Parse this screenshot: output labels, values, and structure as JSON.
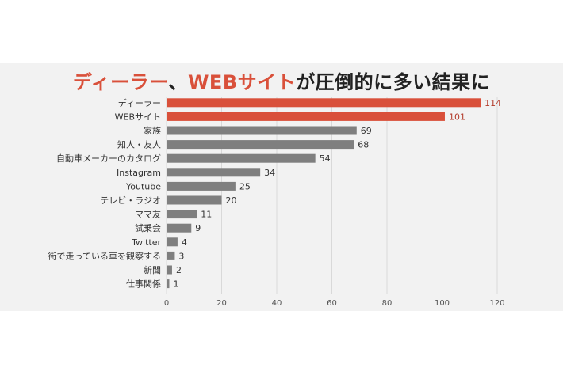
{
  "title": {
    "part1": "ディーラー",
    "part2": "、",
    "part3": "WEBサイト",
    "part4": "が圧倒的に多い結果に"
  },
  "colors": {
    "highlight": "#d9503a",
    "bar": "#7f7f7f",
    "highlight_label": "#b23a2a",
    "label": "#333333",
    "grid": "#d9d9d9",
    "background": "#f2f2f2"
  },
  "chart_data": {
    "type": "bar",
    "orientation": "horizontal",
    "categories": [
      "ディーラー",
      "WEBサイト",
      "家族",
      "知人・友人",
      "自動車メーカーのカタログ",
      "Instagram",
      "Youtube",
      "テレビ・ラジオ",
      "ママ友",
      "試乗会",
      "Twitter",
      "街で走っている車を観察する",
      "新聞",
      "仕事関係"
    ],
    "values": [
      114,
      101,
      69,
      68,
      54,
      34,
      25,
      20,
      11,
      9,
      4,
      3,
      2,
      1
    ],
    "highlighted": [
      true,
      true,
      false,
      false,
      false,
      false,
      false,
      false,
      false,
      false,
      false,
      false,
      false,
      false
    ],
    "xlim": [
      0,
      120
    ],
    "xticks": [
      0,
      20,
      40,
      60,
      80,
      100,
      120
    ],
    "grid": "vertical",
    "data_labels": true
  }
}
